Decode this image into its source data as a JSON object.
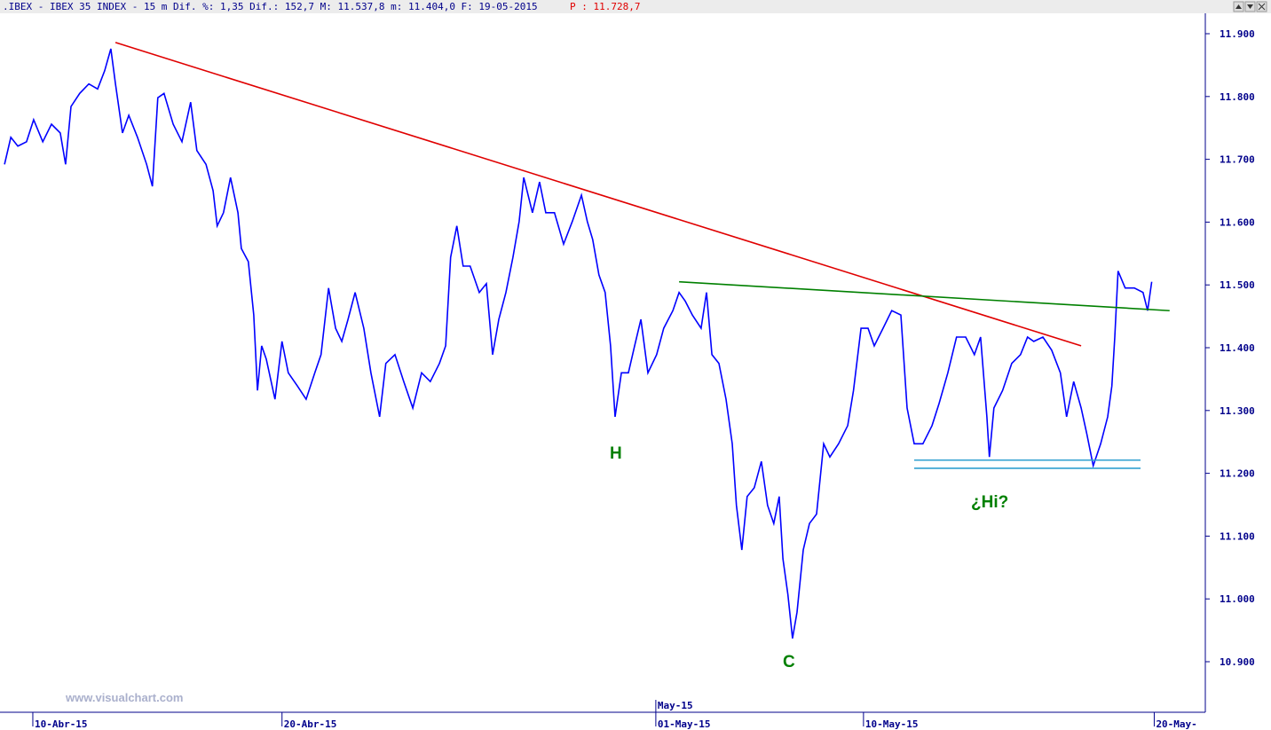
{
  "header": {
    "text": ".IBEX - IBEX 35 INDEX -  15 m Dif. %: 1,35 Dif.: 152,7 M: 11.537,8 m: 11.404,0 F: 19-05-2015",
    "price": "P : 11.728,7"
  },
  "watermark": "www.visualchart.com",
  "chart_data": {
    "type": "line",
    "x": [
      -0.68,
      -0.53,
      -0.36,
      -0.15,
      0.02,
      0.24,
      0.45,
      0.66,
      0.79,
      0.92,
      1.13,
      1.35,
      1.56,
      1.73,
      1.88,
      1.99,
      2.16,
      2.31,
      2.52,
      2.74,
      2.88,
      3.01,
      3.16,
      3.38,
      3.59,
      3.8,
      3.95,
      4.17,
      4.34,
      4.44,
      4.59,
      4.76,
      4.94,
      5.02,
      5.19,
      5.32,
      5.41,
      5.51,
      5.62,
      5.83,
      6.0,
      6.15,
      6.37,
      6.58,
      6.79,
      6.94,
      7.12,
      7.29,
      7.44,
      7.59,
      7.76,
      7.97,
      8.14,
      8.35,
      8.5,
      8.72,
      8.93,
      9.15,
      9.36,
      9.57,
      9.79,
      9.94,
      10.06,
      10.21,
      10.36,
      10.53,
      10.75,
      10.92,
      11.07,
      11.22,
      11.39,
      11.56,
      11.71,
      11.82,
      12.03,
      12.2,
      12.35,
      12.56,
      12.78,
      12.99,
      13.21,
      13.35,
      13.48,
      13.63,
      13.78,
      13.91,
      14.02,
      14.17,
      14.34,
      14.49,
      14.64,
      14.81,
      15.02,
      15.19,
      15.41,
      15.56,
      15.71,
      15.88,
      16.09,
      16.22,
      16.35,
      16.52,
      16.69,
      16.84,
      16.94,
      17.07,
      17.2,
      17.37,
      17.54,
      17.69,
      17.84,
      17.97,
      18.06,
      18.18,
      18.29,
      18.4,
      18.55,
      18.7,
      18.87,
      19.04,
      19.19,
      19.4,
      19.62,
      19.76,
      19.94,
      20.11,
      20.26,
      20.47,
      20.68,
      20.9,
      21.05,
      21.22,
      21.43,
      21.65,
      21.82,
      22.03,
      22.24,
      22.46,
      22.67,
      22.82,
      22.97,
      23.03,
      23.14,
      23.35,
      23.57,
      23.78,
      23.95,
      24.1,
      24.32,
      24.53,
      24.74,
      24.89,
      25.06,
      25.24,
      25.38,
      25.53,
      25.71,
      25.88,
      25.98,
      26.05,
      26.13,
      26.3,
      26.52,
      26.73,
      26.84,
      26.94
    ],
    "series": [
      {
        "name": "IBEX 35",
        "color": "#0000ff",
        "values": [
          11692,
          11735,
          11721,
          11728,
          11763,
          11728,
          11756,
          11742,
          11692,
          11784,
          11805,
          11820,
          11812,
          11841,
          11876,
          11820,
          11742,
          11770,
          11735,
          11692,
          11657,
          11798,
          11805,
          11756,
          11728,
          11791,
          11714,
          11692,
          11650,
          11594,
          11615,
          11671,
          11615,
          11558,
          11537,
          11452,
          11332,
          11403,
          11382,
          11318,
          11410,
          11360,
          11339,
          11318,
          11360,
          11389,
          11495,
          11431,
          11410,
          11445,
          11488,
          11431,
          11360,
          11290,
          11375,
          11389,
          11346,
          11304,
          11360,
          11346,
          11375,
          11403,
          11544,
          11594,
          11530,
          11530,
          11488,
          11502,
          11389,
          11445,
          11488,
          11544,
          11601,
          11671,
          11615,
          11664,
          11615,
          11615,
          11565,
          11601,
          11643,
          11601,
          11572,
          11516,
          11488,
          11403,
          11290,
          11360,
          11360,
          11403,
          11445,
          11360,
          11389,
          11431,
          11459,
          11488,
          11474,
          11452,
          11431,
          11488,
          11389,
          11375,
          11318,
          11247,
          11149,
          11078,
          11163,
          11177,
          11219,
          11149,
          11120,
          11163,
          11064,
          11007,
          10937,
          10979,
          11078,
          11120,
          11135,
          11247,
          11226,
          11247,
          11276,
          11332,
          11431,
          11431,
          11403,
          11431,
          11459,
          11452,
          11304,
          11247,
          11247,
          11276,
          11311,
          11360,
          11417,
          11417,
          11389,
          11417,
          11290,
          11226,
          11304,
          11332,
          11375,
          11389,
          11417,
          11410,
          11417,
          11396,
          11360,
          11290,
          11346,
          11304,
          11262,
          11212,
          11247,
          11290,
          11339,
          11417,
          11522,
          11495,
          11495,
          11488,
          11459,
          11505
        ]
      }
    ],
    "trendlines": [
      {
        "color": "#e00000",
        "x": [
          1.99,
          25.24
        ],
        "y": [
          11886,
          11403
        ]
      },
      {
        "color": "#008000",
        "x": [
          15.56,
          27.37
        ],
        "y": [
          11505,
          11459
        ]
      },
      {
        "color": "#30a0d0",
        "x": [
          21.22,
          26.67
        ],
        "y": [
          11221,
          11221
        ]
      },
      {
        "color": "#30a0d0",
        "x": [
          21.22,
          26.67
        ],
        "y": [
          11208,
          11208
        ]
      }
    ],
    "annotations": [
      "H",
      "C",
      "¿Hi?"
    ],
    "xlim": [
      -0.79,
      28.23
    ],
    "xticks": [
      {
        "value": 0,
        "label": "10-Abr-15"
      },
      {
        "value": 6,
        "label": "20-Abr-15"
      },
      {
        "value": 15,
        "label": "01-May-15"
      },
      {
        "value": 20,
        "label": "10-May-15"
      },
      {
        "value": 27,
        "label": "20-May-"
      }
    ],
    "month_ticks": [
      {
        "value": 15,
        "label": "May-15"
      }
    ],
    "ylim": [
      10819.5,
      11932.5
    ],
    "yticks": [
      {
        "value": 10900,
        "label": "10.900"
      },
      {
        "value": 11000,
        "label": "11.000"
      },
      {
        "value": 11100,
        "label": "11.100"
      },
      {
        "value": 11200,
        "label": "11.200"
      },
      {
        "value": 11300,
        "label": "11.300"
      },
      {
        "value": 11400,
        "label": "11.400"
      },
      {
        "value": 11500,
        "label": "11.500"
      },
      {
        "value": 11600,
        "label": "11.600"
      },
      {
        "value": 11700,
        "label": "11.700"
      },
      {
        "value": 11800,
        "label": "11.800"
      },
      {
        "value": 11900,
        "label": "11.900"
      }
    ]
  }
}
